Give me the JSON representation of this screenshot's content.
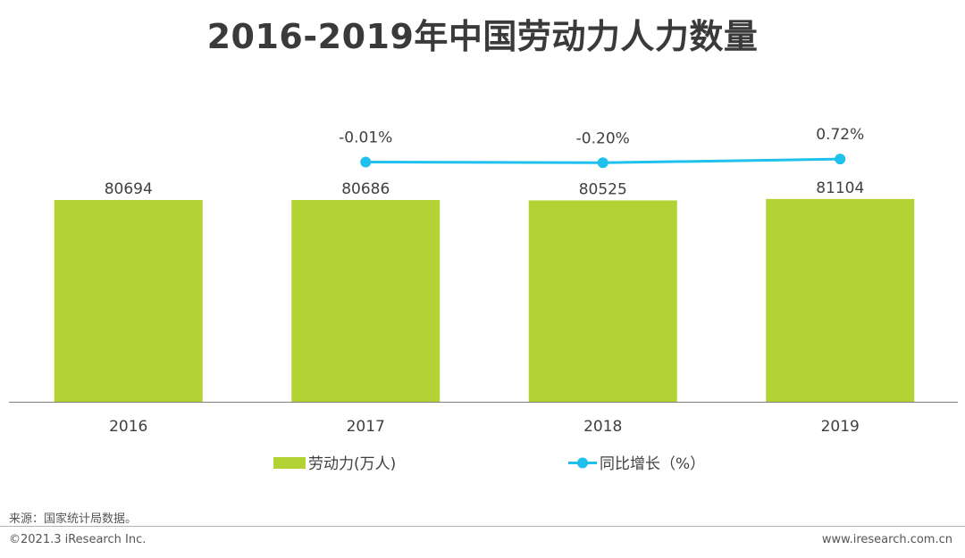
{
  "header": {
    "title": "2016-2019年中国劳动力人力数量"
  },
  "chart_data": {
    "type": "bar",
    "title": "2016-2019年中国劳动力人力数量",
    "categories": [
      "2016",
      "2017",
      "2018",
      "2019"
    ],
    "series": [
      {
        "name": "劳动力(万人)",
        "type": "bar",
        "values": [
          80694,
          80686,
          80525,
          81104
        ],
        "labels": [
          "80694",
          "80686",
          "80525",
          "81104"
        ],
        "color": "#b3d334"
      },
      {
        "name": "同比增长（%）",
        "type": "line",
        "values": [
          null,
          -0.01,
          -0.2,
          0.72
        ],
        "labels": [
          null,
          "-0.01%",
          "-0.20%",
          "0.72%"
        ],
        "color": "#1fc0eb"
      }
    ],
    "legend_position": "bottom",
    "grid": false
  },
  "footer": {
    "source": "来源：国家统计局数据。",
    "copyright": "©2021.3 iResearch Inc.",
    "website": "www.iresearch.com.cn"
  }
}
